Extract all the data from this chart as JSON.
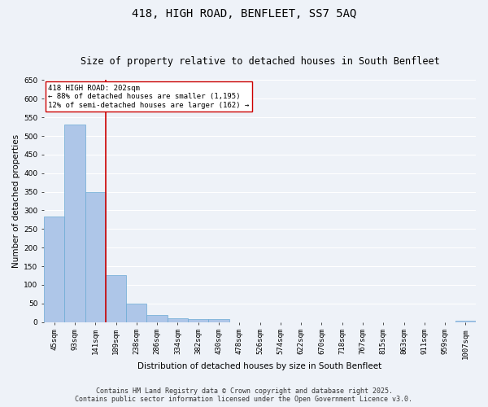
{
  "title": "418, HIGH ROAD, BENFLEET, SS7 5AQ",
  "subtitle": "Size of property relative to detached houses in South Benfleet",
  "xlabel": "Distribution of detached houses by size in South Benfleet",
  "ylabel": "Number of detached properties",
  "categories": [
    "45sqm",
    "93sqm",
    "141sqm",
    "189sqm",
    "238sqm",
    "286sqm",
    "334sqm",
    "382sqm",
    "430sqm",
    "478sqm",
    "526sqm",
    "574sqm",
    "622sqm",
    "670sqm",
    "718sqm",
    "767sqm",
    "815sqm",
    "863sqm",
    "911sqm",
    "959sqm",
    "1007sqm"
  ],
  "values": [
    283,
    530,
    348,
    125,
    50,
    18,
    10,
    7,
    7,
    0,
    0,
    0,
    0,
    0,
    0,
    0,
    0,
    0,
    0,
    0,
    4
  ],
  "bar_color": "#aec6e8",
  "bar_edge_color": "#6aaad4",
  "vline_color": "#cc0000",
  "vline_x_index": 3,
  "annotation_text": "418 HIGH ROAD: 202sqm\n← 88% of detached houses are smaller (1,195)\n12% of semi-detached houses are larger (162) →",
  "annotation_box_color": "#ffffff",
  "annotation_box_edge": "#cc0000",
  "ylim": [
    0,
    650
  ],
  "yticks": [
    0,
    50,
    100,
    150,
    200,
    250,
    300,
    350,
    400,
    450,
    500,
    550,
    600,
    650
  ],
  "footer_text": "Contains HM Land Registry data © Crown copyright and database right 2025.\nContains public sector information licensed under the Open Government Licence v3.0.",
  "background_color": "#eef2f8",
  "grid_color": "#ffffff",
  "title_fontsize": 10,
  "subtitle_fontsize": 8.5,
  "axis_label_fontsize": 7.5,
  "tick_fontsize": 6.5,
  "annotation_fontsize": 6.5,
  "footer_fontsize": 6.0
}
